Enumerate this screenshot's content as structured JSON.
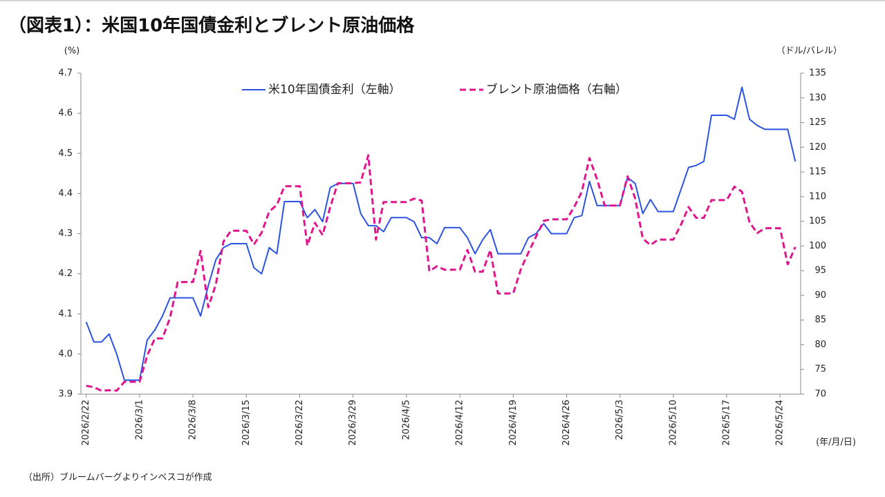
{
  "chart_data": {
    "type": "line",
    "title": "（図表1）：米国10年国債金利とブレント原油価格",
    "y_label": "(%)",
    "y2_label": "（ドル/バレル）",
    "x_label": "(年/月/日)",
    "source": "（出所）ブルームバーグよりインベスコが作成",
    "x": [
      "2026/2/22",
      "2026/2/23",
      "2026/2/24",
      "2026/2/25",
      "2026/2/26",
      "2026/2/27",
      "2026/2/28",
      "2026/3/1",
      "2026/3/2",
      "2026/3/3",
      "2026/3/4",
      "2026/3/5",
      "2026/3/6",
      "2026/3/7",
      "2026/3/8",
      "2026/3/9",
      "2026/3/10",
      "2026/3/11",
      "2026/3/12",
      "2026/3/13",
      "2026/3/14",
      "2026/3/15",
      "2026/3/16",
      "2026/3/17",
      "2026/3/18",
      "2026/3/19",
      "2026/3/20",
      "2026/3/21",
      "2026/3/22",
      "2026/3/23",
      "2026/3/24",
      "2026/3/25",
      "2026/3/26",
      "2026/3/27",
      "2026/3/28",
      "2026/3/29",
      "2026/3/30",
      "2026/3/31",
      "2026/4/1",
      "2026/4/2",
      "2026/4/3",
      "2026/4/4",
      "2026/4/5",
      "2026/4/6",
      "2026/4/7",
      "2026/4/8",
      "2026/4/9",
      "2026/4/10",
      "2026/4/11",
      "2026/4/12",
      "2026/4/13",
      "2026/4/14",
      "2026/4/15",
      "2026/4/16",
      "2026/4/17",
      "2026/4/18",
      "2026/4/19",
      "2026/4/20",
      "2026/4/21",
      "2026/4/22",
      "2026/4/23",
      "2026/4/24",
      "2026/4/25",
      "2026/4/26",
      "2026/4/27",
      "2026/4/28",
      "2026/4/29",
      "2026/4/30",
      "2026/5/1",
      "2026/5/2",
      "2026/5/3",
      "2026/5/4",
      "2026/5/5",
      "2026/5/6",
      "2026/5/7",
      "2026/5/8",
      "2026/5/9",
      "2026/5/10",
      "2026/5/11",
      "2026/5/12",
      "2026/5/13",
      "2026/5/14",
      "2026/5/15",
      "2026/5/16",
      "2026/5/17",
      "2026/5/18",
      "2026/5/19",
      "2026/5/20",
      "2026/5/21",
      "2026/5/22",
      "2026/5/23",
      "2026/5/24",
      "2026/5/25",
      "2026/5/26"
    ],
    "xticks": [
      "2026/2/22",
      "2026/3/1",
      "2026/3/8",
      "2026/3/15",
      "2026/3/22",
      "2026/3/29",
      "2026/4/5",
      "2026/4/12",
      "2026/4/19",
      "2026/4/26",
      "2026/5/3",
      "2026/5/10",
      "2026/5/17",
      "2026/5/24"
    ],
    "series": [
      {
        "name": "米10年国債金利（左軸）",
        "color": "#2a52e0",
        "dash": false,
        "axis": "y",
        "values": [
          4.08,
          4.03,
          4.03,
          4.05,
          4.0,
          3.935,
          3.935,
          3.935,
          4.035,
          4.06,
          4.095,
          4.14,
          4.14,
          4.14,
          4.14,
          4.095,
          4.17,
          4.235,
          4.265,
          4.275,
          4.275,
          4.275,
          4.215,
          4.2,
          4.265,
          4.25,
          4.38,
          4.38,
          4.38,
          4.34,
          4.36,
          4.33,
          4.415,
          4.425,
          4.425,
          4.425,
          4.35,
          4.32,
          4.32,
          4.305,
          4.34,
          4.34,
          4.34,
          4.33,
          4.29,
          4.29,
          4.275,
          4.315,
          4.315,
          4.315,
          4.29,
          4.25,
          4.285,
          4.31,
          4.25,
          4.25,
          4.25,
          4.25,
          4.29,
          4.3,
          4.325,
          4.3,
          4.3,
          4.3,
          4.34,
          4.345,
          4.43,
          4.37,
          4.37,
          4.37,
          4.37,
          4.44,
          4.425,
          4.35,
          4.385,
          4.355,
          4.355,
          4.355,
          4.41,
          4.465,
          4.47,
          4.48,
          4.595,
          4.595,
          4.595,
          4.585,
          4.665,
          4.585,
          4.57,
          4.56,
          4.56,
          4.56,
          4.56,
          4.48
        ]
      },
      {
        "name": "ブレント原油価格（右軸）",
        "color": "#e0148c",
        "dash": true,
        "axis": "y2",
        "values": [
          71.7,
          71.4,
          70.7,
          70.8,
          70.7,
          72.5,
          72.5,
          72.5,
          77.8,
          81.3,
          81.3,
          85.5,
          92.7,
          92.7,
          92.7,
          99,
          87.6,
          92.2,
          100.9,
          103.1,
          103.1,
          103.1,
          100.3,
          102.7,
          107,
          108.3,
          112.1,
          112.1,
          112.1,
          100.1,
          104.7,
          102.2,
          107.9,
          112.7,
          112.7,
          112.7,
          112.9,
          118.4,
          101.3,
          108.9,
          108.9,
          108.9,
          108.9,
          109.6,
          109.2,
          94.9,
          95.9,
          95.2,
          95.2,
          95.2,
          99.2,
          94.8,
          94.8,
          99.2,
          90.4,
          90.4,
          90.4,
          95.3,
          98.7,
          101.9,
          105.1,
          105.4,
          105.4,
          105.4,
          107.9,
          111,
          117.8,
          113.5,
          108.2,
          108.2,
          108.2,
          114.1,
          109.6,
          101.5,
          100.2,
          101.3,
          101.3,
          101.3,
          104.3,
          107.9,
          105.7,
          105.7,
          109.3,
          109.3,
          109.3,
          112,
          111,
          104.8,
          102.6,
          103.6,
          103.6,
          103.6,
          96.3,
          99.8
        ]
      }
    ],
    "ylim": [
      3.9,
      4.7
    ],
    "yticks": [
      3.9,
      {
        "value": 4,
        "label": "4.0"
      },
      4.1,
      4.2,
      4.3,
      4.4,
      4.5,
      4.6,
      4.7
    ],
    "y2lim": [
      70,
      135
    ],
    "y2ticks": [
      70,
      75,
      80,
      85,
      90,
      95,
      100,
      105,
      110,
      115,
      120,
      125,
      130,
      135
    ],
    "grid": false,
    "legend": "top"
  }
}
